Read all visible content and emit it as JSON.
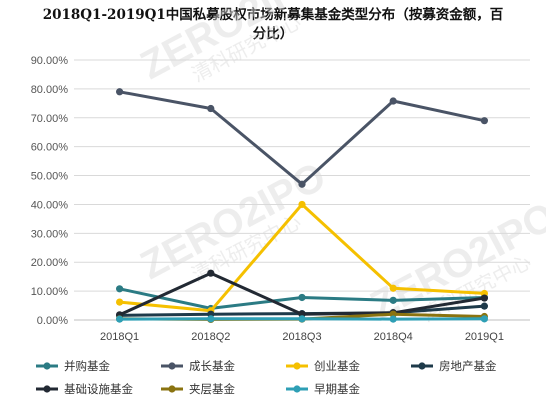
{
  "chart_data": {
    "type": "line",
    "title": "2018Q1-2019Q1中国私募股权市场新募集基金类型分布（按募资金额，百分比）",
    "categories": [
      "2018Q1",
      "2018Q2",
      "2018Q3",
      "2018Q4",
      "2019Q1"
    ],
    "y_ticks": [
      "0.00%",
      "10.00%",
      "20.00%",
      "30.00%",
      "40.00%",
      "50.00%",
      "60.00%",
      "70.00%",
      "80.00%",
      "90.00%"
    ],
    "ylim": [
      0,
      90
    ],
    "y_unit": "%",
    "grid": "horizontal",
    "legend_position": "bottom",
    "series": [
      {
        "name": "并购基金",
        "color": "#2b7b84",
        "values": [
          10.8,
          4.0,
          7.8,
          6.8,
          7.8
        ]
      },
      {
        "name": "成长基金",
        "color": "#4a5466",
        "values": [
          79.0,
          73.2,
          47.0,
          75.8,
          69.0
        ]
      },
      {
        "name": "创业基金",
        "color": "#f5c000",
        "values": [
          6.2,
          3.2,
          40.0,
          11.0,
          9.2
        ]
      },
      {
        "name": "房地产基金",
        "color": "#1e3a4a",
        "values": [
          1.6,
          2.0,
          2.2,
          2.5,
          4.8
        ]
      },
      {
        "name": "基础设施基金",
        "color": "#222933",
        "values": [
          1.8,
          16.2,
          2.0,
          2.5,
          7.6
        ]
      },
      {
        "name": "夹层基金",
        "color": "#8a7310",
        "values": [
          0.4,
          0.2,
          0.3,
          2.0,
          1.2
        ]
      },
      {
        "name": "早期基金",
        "color": "#2e9fb5",
        "values": [
          0.3,
          0.4,
          0.4,
          0.3,
          0.4
        ]
      }
    ]
  },
  "watermark": {
    "text": "ZERO2IPO",
    "subtext": "清科研究中心"
  }
}
